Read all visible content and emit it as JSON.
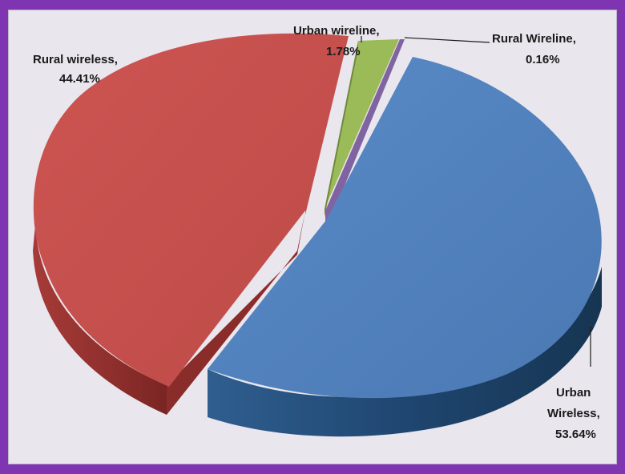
{
  "chart_data": {
    "type": "pie",
    "title": "",
    "slices": [
      {
        "label": "Urban Wireless",
        "value": 53.64,
        "color": "#4f81bd"
      },
      {
        "label": "Rural wireless",
        "value": 44.41,
        "color": "#c0504d"
      },
      {
        "label": "Urban wireline",
        "value": 1.78,
        "color": "#9bbb59"
      },
      {
        "label": "Rural Wireline",
        "value": 0.16,
        "color": "#8064a2"
      }
    ],
    "data_labels": [
      {
        "name": "Urban",
        "value": "Wireless,",
        "pct": "53.64%"
      },
      {
        "line1": "Rural wireless,",
        "line2": "44.41%"
      },
      {
        "line1": "Urban wireline,",
        "line2": "1.78%"
      },
      {
        "line1": "Rural Wireline,",
        "line2": "0.16%"
      }
    ],
    "style": "3d-exploded",
    "legend": "none"
  },
  "colors": {
    "frame": "#7f35b2",
    "background": "#e9e6ee"
  }
}
